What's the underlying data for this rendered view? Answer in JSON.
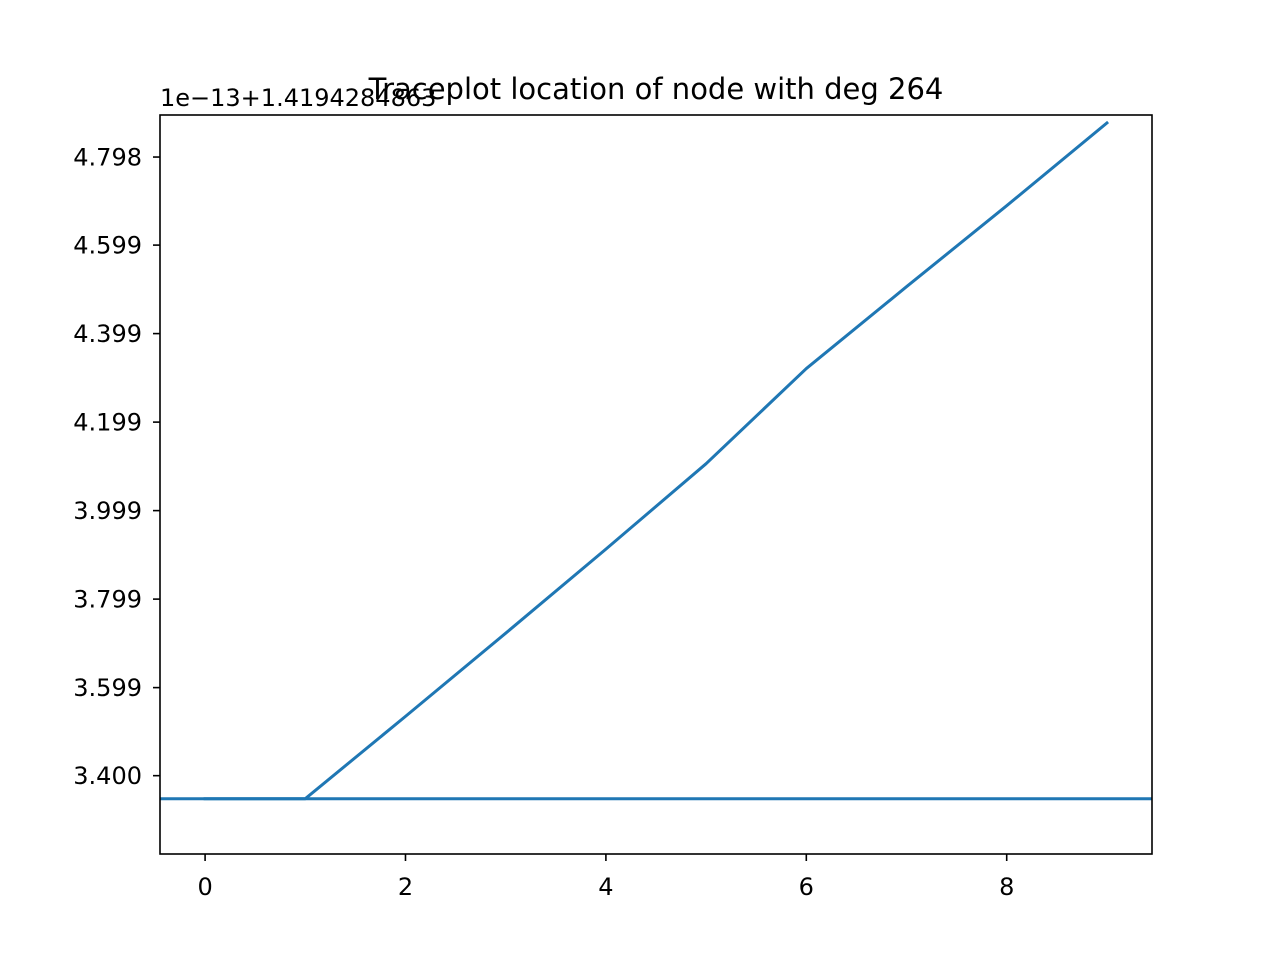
{
  "chart_data": {
    "type": "line",
    "title": "Traceplot location of node with deg 264",
    "xlabel": "",
    "ylabel": "",
    "y_offset_label": "1e−13+1.4194284863",
    "x_ticks": [
      0,
      2,
      4,
      6,
      8
    ],
    "x_tick_labels": [
      "0",
      "2",
      "4",
      "6",
      "8"
    ],
    "y_ticks": [
      3.4,
      3.599,
      3.799,
      3.999,
      4.199,
      4.399,
      4.599,
      4.798
    ],
    "y_tick_labels": [
      "3.400",
      "3.599",
      "3.799",
      "3.999",
      "4.199",
      "4.399",
      "4.599",
      "4.798"
    ],
    "xlim": [
      -0.45,
      9.45
    ],
    "ylim": [
      3.223,
      4.893
    ],
    "grid": false,
    "series": [
      {
        "color": "#1f77b4",
        "x": [
          0,
          1,
          2,
          3,
          4,
          5,
          6,
          7,
          8,
          9
        ],
        "y": [
          3.348,
          3.348,
          3.534,
          3.722,
          3.912,
          4.105,
          4.32,
          4.505,
          4.688,
          4.875
        ]
      }
    ],
    "hlines": [
      {
        "color": "#1f77b4",
        "y": 3.348
      }
    ]
  }
}
